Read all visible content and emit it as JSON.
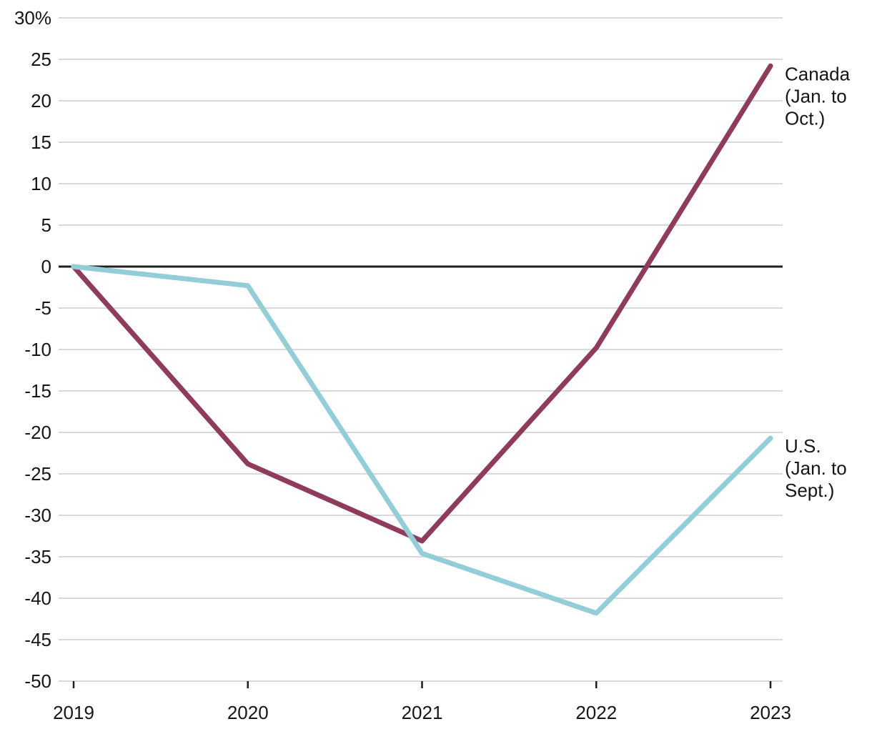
{
  "chart_data": {
    "type": "line",
    "title": "",
    "xlabel": "",
    "ylabel": "",
    "x": [
      2019,
      2020,
      2021,
      2022,
      2023
    ],
    "x_tick_labels": [
      "2019",
      "2020",
      "2021",
      "2022",
      "2023"
    ],
    "series": [
      {
        "name": "canada",
        "label_lines": [
          "Canada",
          "(Jan. to",
          "Oct.)"
        ],
        "color": "#8F3B5C",
        "values": [
          0,
          -23.8,
          -33.1,
          -9.8,
          24.2
        ]
      },
      {
        "name": "us",
        "label_lines": [
          "U.S.",
          "(Jan. to",
          "Sept.)"
        ],
        "color": "#93CDD8",
        "values": [
          0,
          -2.3,
          -34.6,
          -41.8,
          -20.7
        ]
      }
    ],
    "ylim": [
      -50,
      30
    ],
    "y_tick_step": 5,
    "y_tick_labels": [
      "30%",
      "25",
      "20",
      "15",
      "10",
      "5",
      "0",
      "-5",
      "-10",
      "-15",
      "-20",
      "-25",
      "-30",
      "-35",
      "-40",
      "-45",
      "-50"
    ],
    "grid": true,
    "zero_line": true,
    "legend_position": "right-end-of-lines"
  },
  "colors": {
    "background": "#FFFFFF",
    "gridline": "#D9D9D9",
    "zero_line": "#1F1F1F",
    "tick_mark": "#1F1F1F",
    "axis_text": "#161616"
  }
}
